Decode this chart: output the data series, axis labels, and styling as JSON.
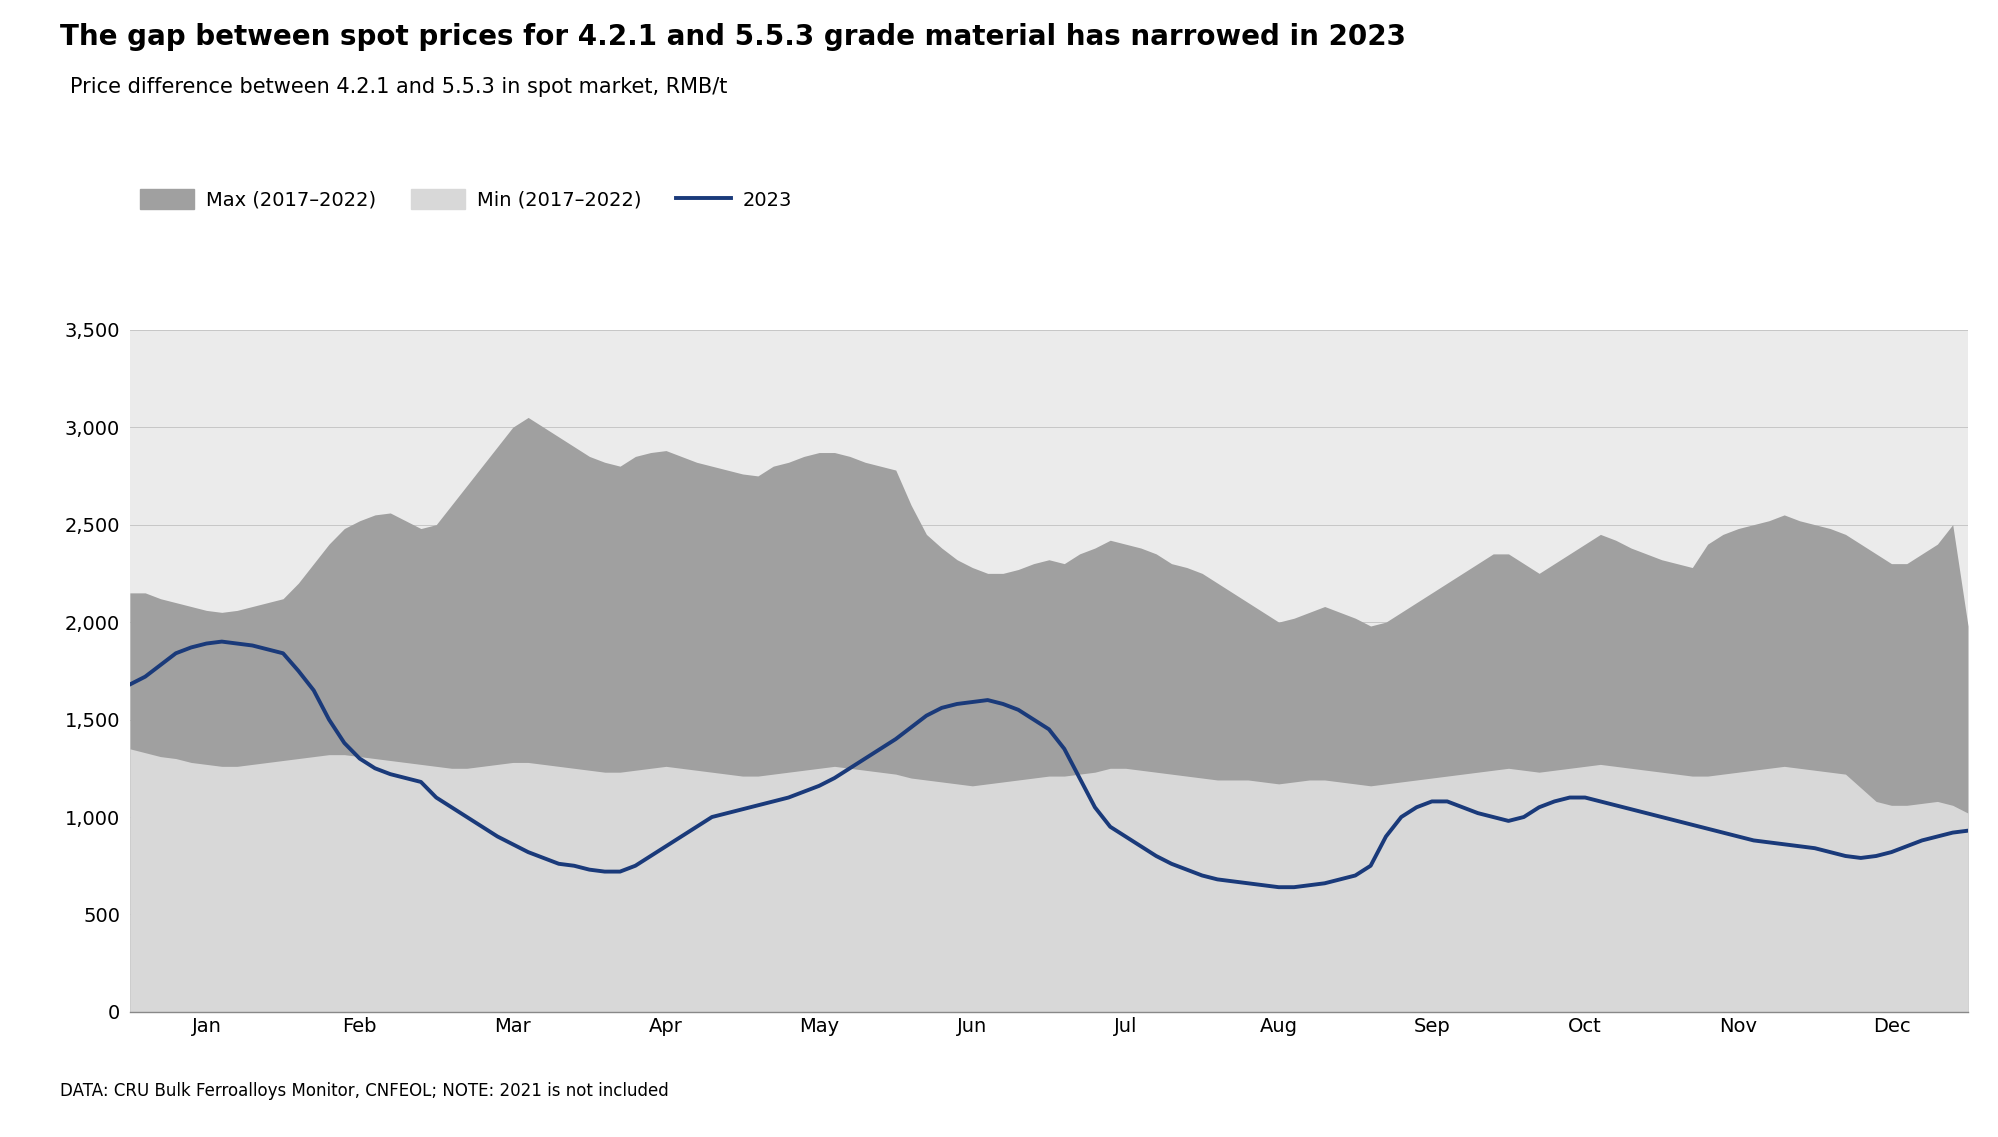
{
  "title": "The gap between spot prices for 4.2.1 and 5.5.3 grade material has narrowed in 2023",
  "subtitle": "Price difference between 4.2.1 and 5.5.3 in spot market, RMB/t",
  "footnote": "DATA: CRU Bulk Ferroalloys Monitor, CNFEOL; NOTE: 2021 is not included",
  "legend": [
    "Max (2017–2022)",
    "Min (2017–2022)",
    "2023"
  ],
  "background_color": "#ffffff",
  "plot_bg_color": "#ebebeb",
  "ylim": [
    0,
    3500
  ],
  "yticks": [
    0,
    500,
    1000,
    1500,
    2000,
    2500,
    3000,
    3500
  ],
  "months": [
    "Jan",
    "Feb",
    "Mar",
    "Apr",
    "May",
    "Jun",
    "Jul",
    "Aug",
    "Sep",
    "Oct",
    "Nov",
    "Dec"
  ],
  "max_series": [
    2150,
    2150,
    2120,
    2100,
    2080,
    2060,
    2050,
    2060,
    2080,
    2100,
    2120,
    2200,
    2300,
    2400,
    2480,
    2520,
    2550,
    2560,
    2520,
    2480,
    2500,
    2600,
    2700,
    2800,
    2900,
    3000,
    3050,
    3000,
    2950,
    2900,
    2850,
    2820,
    2800,
    2850,
    2870,
    2880,
    2850,
    2820,
    2800,
    2780,
    2760,
    2750,
    2800,
    2820,
    2850,
    2870,
    2870,
    2850,
    2820,
    2800,
    2780,
    2600,
    2450,
    2380,
    2320,
    2280,
    2250,
    2250,
    2270,
    2300,
    2320,
    2300,
    2350,
    2380,
    2420,
    2400,
    2380,
    2350,
    2300,
    2280,
    2250,
    2200,
    2150,
    2100,
    2050,
    2000,
    2020,
    2050,
    2080,
    2050,
    2020,
    1980,
    2000,
    2050,
    2100,
    2150,
    2200,
    2250,
    2300,
    2350,
    2350,
    2300,
    2250,
    2300,
    2350,
    2400,
    2450,
    2420,
    2380,
    2350,
    2320,
    2300,
    2280,
    2400,
    2450,
    2480,
    2500,
    2520,
    2550,
    2520,
    2500,
    2480,
    2450,
    2400,
    2350,
    2300,
    2300,
    2350,
    2400,
    2500,
    1980
  ],
  "min_series": [
    1350,
    1330,
    1310,
    1300,
    1280,
    1270,
    1260,
    1260,
    1270,
    1280,
    1290,
    1300,
    1310,
    1320,
    1320,
    1310,
    1300,
    1290,
    1280,
    1270,
    1260,
    1250,
    1250,
    1260,
    1270,
    1280,
    1280,
    1270,
    1260,
    1250,
    1240,
    1230,
    1230,
    1240,
    1250,
    1260,
    1250,
    1240,
    1230,
    1220,
    1210,
    1210,
    1220,
    1230,
    1240,
    1250,
    1260,
    1250,
    1240,
    1230,
    1220,
    1200,
    1190,
    1180,
    1170,
    1160,
    1170,
    1180,
    1190,
    1200,
    1210,
    1210,
    1220,
    1230,
    1250,
    1250,
    1240,
    1230,
    1220,
    1210,
    1200,
    1190,
    1190,
    1190,
    1180,
    1170,
    1180,
    1190,
    1190,
    1180,
    1170,
    1160,
    1170,
    1180,
    1190,
    1200,
    1210,
    1220,
    1230,
    1240,
    1250,
    1240,
    1230,
    1240,
    1250,
    1260,
    1270,
    1260,
    1250,
    1240,
    1230,
    1220,
    1210,
    1210,
    1220,
    1230,
    1240,
    1250,
    1260,
    1250,
    1240,
    1230,
    1220,
    1150,
    1080,
    1060,
    1060,
    1070,
    1080,
    1060,
    1020
  ],
  "line_2023": [
    1680,
    1720,
    1780,
    1840,
    1870,
    1890,
    1900,
    1890,
    1880,
    1860,
    1840,
    1750,
    1650,
    1500,
    1380,
    1300,
    1250,
    1220,
    1200,
    1180,
    1100,
    1050,
    1000,
    950,
    900,
    860,
    820,
    790,
    760,
    750,
    730,
    720,
    720,
    750,
    800,
    850,
    900,
    950,
    1000,
    1020,
    1040,
    1060,
    1080,
    1100,
    1130,
    1160,
    1200,
    1250,
    1300,
    1350,
    1400,
    1460,
    1520,
    1560,
    1580,
    1590,
    1600,
    1580,
    1550,
    1500,
    1450,
    1350,
    1200,
    1050,
    950,
    900,
    850,
    800,
    760,
    730,
    700,
    680,
    670,
    660,
    650,
    640,
    640,
    650,
    660,
    680,
    700,
    750,
    900,
    1000,
    1050,
    1080,
    1080,
    1050,
    1020,
    1000,
    980,
    1000,
    1050,
    1080,
    1100,
    1100,
    1080,
    1060,
    1040,
    1020,
    1000,
    980,
    960,
    940,
    920,
    900,
    880,
    870,
    860,
    850,
    840,
    820,
    800,
    790,
    800,
    820,
    850,
    880,
    900,
    920,
    930
  ],
  "max_color": "#a0a0a0",
  "min_color": "#d8d8d8",
  "line_color": "#1a3a7a",
  "title_fontsize": 20,
  "subtitle_fontsize": 15,
  "axis_fontsize": 14,
  "legend_fontsize": 14,
  "footnote_fontsize": 12
}
